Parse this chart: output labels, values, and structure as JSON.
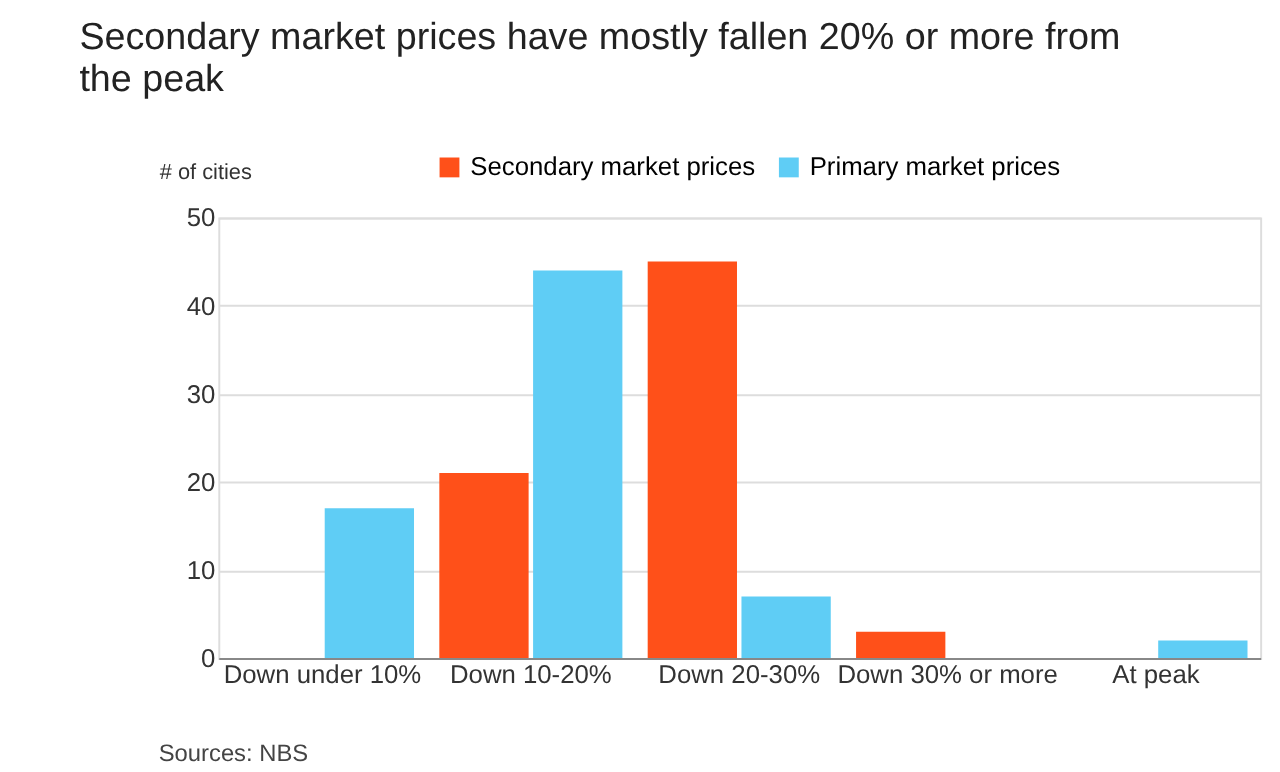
{
  "chart_data": {
    "type": "bar",
    "title": "Secondary market prices have mostly fallen 20% or more from the peak",
    "ylabel": "# of cities",
    "categories": [
      "Down under 10%",
      "Down 10-20%",
      "Down 20-30%",
      "Down 30% or more",
      "At peak"
    ],
    "series": [
      {
        "name": "Secondary market prices",
        "color": "#ff5019",
        "values": [
          0,
          21,
          45,
          3,
          0
        ]
      },
      {
        "name": "Primary market prices",
        "color": "#5fcdf5",
        "values": [
          17,
          44,
          7,
          0,
          2
        ]
      }
    ],
    "ylim": [
      0,
      50
    ],
    "yticks": [
      0,
      10,
      20,
      30,
      40,
      50
    ],
    "grid": "y",
    "legend": "top",
    "annotations": [
      "Sources: NBS"
    ]
  }
}
